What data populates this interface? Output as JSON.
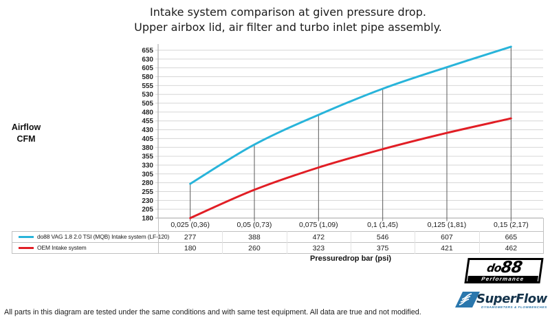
{
  "title": {
    "line1": "Intake system comparison at given pressure drop.",
    "line2": "Upper airbox lid, air filter and turbo inlet pipe assembly."
  },
  "y_axis": {
    "line1": "Airflow",
    "line2": "CFM"
  },
  "x_axis": {
    "title": "Pressuredrop bar (psi)"
  },
  "chart_data": {
    "type": "line",
    "title": "Intake system comparison at given pressure drop. Upper airbox lid, air filter and turbo inlet pipe assembly.",
    "xlabel": "Pressuredrop bar (psi)",
    "ylabel": "Airflow CFM",
    "categories": [
      "0,025 (0,36)",
      "0,05 (0,73)",
      "0,075 (1,09)",
      "0,1 (1,45)",
      "0,125 (1,81)",
      "0,15 (2,17)"
    ],
    "series": [
      {
        "name": "do88 VAG 1.8 2.0 TSI (MQB) Intake system (LF-120)",
        "color": "#28b4da",
        "values": [
          277,
          388,
          472,
          546,
          607,
          665
        ]
      },
      {
        "name": "OEM Intake system",
        "color": "#e11e25",
        "values": [
          180,
          260,
          323,
          375,
          421,
          462
        ]
      }
    ],
    "ylim": [
      180,
      655
    ],
    "ytick_step": 25,
    "grid": true,
    "legend_position": "table-left",
    "drop_lines": "vertical-at-each-category"
  },
  "colors": {
    "do88_line": "#28b4da",
    "oem_line": "#e11e25",
    "grid": "#d6d6d6",
    "axis": "#a0a0a0",
    "drop_line": "#595959",
    "table_border": "#c0c0c0",
    "superflow_blue": "#2a77ad"
  },
  "logos": {
    "do88": {
      "name_prefix": "do",
      "name_suffix": "88",
      "sub": "Performance"
    },
    "superflow": {
      "name": "SuperFlow",
      "sub": "DYNAMOMETERS & FLOWBENCHES"
    }
  },
  "footer": {
    "note": "All parts in this diagram are tested under the same conditions and with same test equipment. All data are true and not modified."
  }
}
